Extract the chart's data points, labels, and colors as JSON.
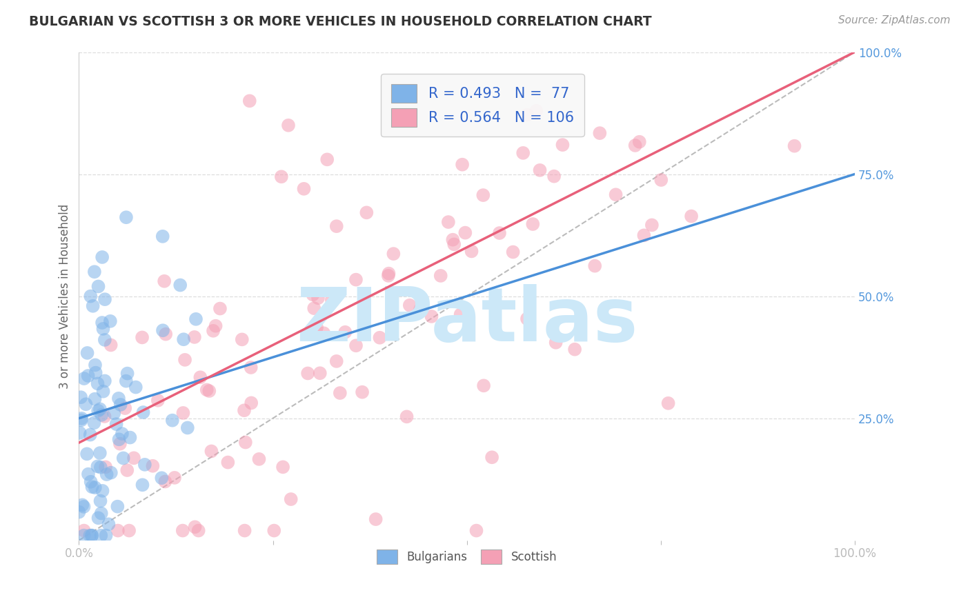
{
  "title": "BULGARIAN VS SCOTTISH 3 OR MORE VEHICLES IN HOUSEHOLD CORRELATION CHART",
  "source": "Source: ZipAtlas.com",
  "ylabel": "3 or more Vehicles in Household",
  "xlim": [
    0,
    1
  ],
  "ylim": [
    0,
    1
  ],
  "bulgarian_R": 0.493,
  "bulgarian_N": 77,
  "scottish_R": 0.564,
  "scottish_N": 106,
  "bulgarian_color": "#7fb3e8",
  "scottish_color": "#f4a0b5",
  "bulgarian_line_color": "#4a90d9",
  "scottish_line_color": "#e8607a",
  "reference_line_color": "#b0b0b0",
  "background_color": "#ffffff",
  "grid_color": "#dddddd",
  "title_color": "#333333",
  "legend_text_color": "#3366cc",
  "watermark_color": "#cce8f8",
  "watermark_text": "ZIPatlas"
}
